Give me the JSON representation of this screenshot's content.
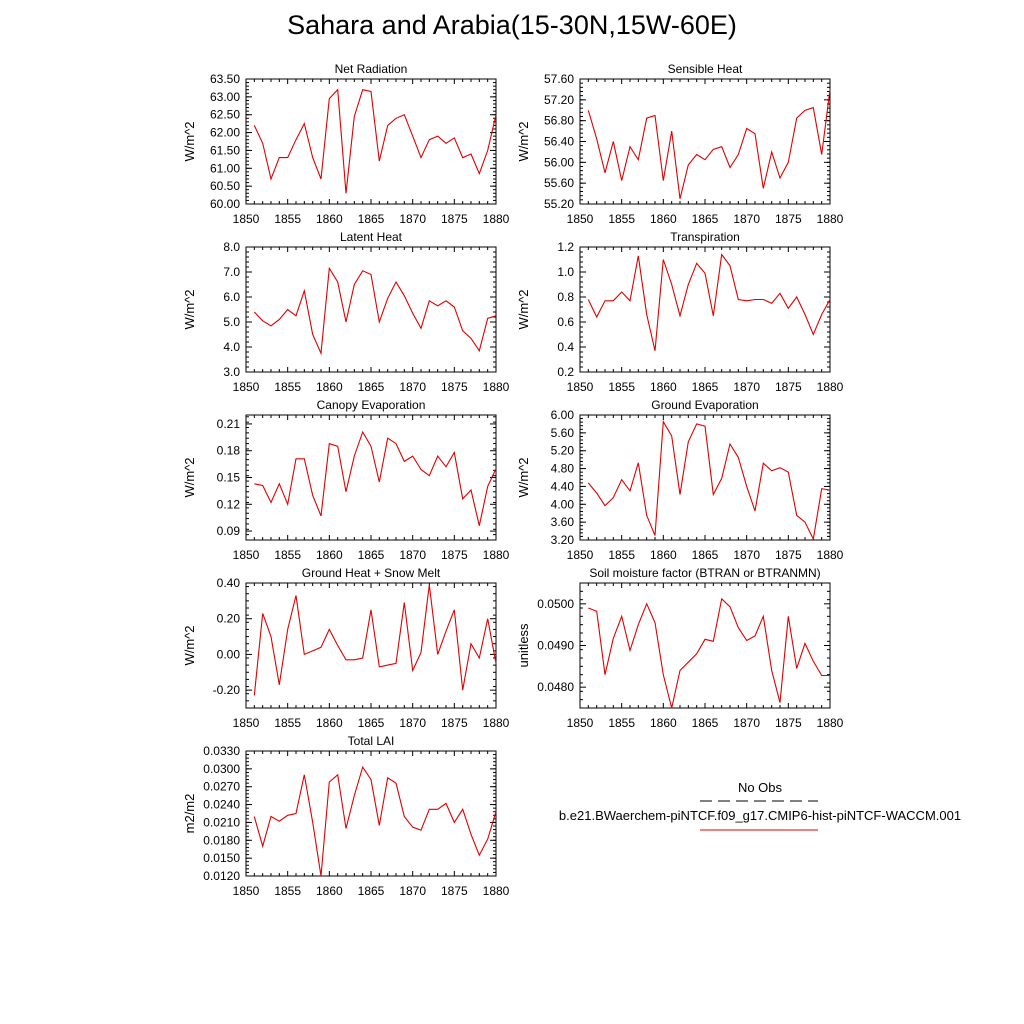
{
  "title": "Sahara and Arabia(15-30N,15W-60E)",
  "legend": {
    "obs_label": "No Obs",
    "case_label": "b.e21.BWaerchem-piNTCF.f09_g17.CMIP6-hist-piNTCF-WACCM.001",
    "case_color": "#e00000",
    "obs_color": "#000000"
  },
  "chart_data": [
    {
      "type": "line",
      "title": "Net Radiation",
      "ylabel": "W/m^2",
      "xlim": [
        1850,
        1880
      ],
      "ylim": [
        60.0,
        63.5
      ],
      "yticks": [
        "63.50",
        "63.00",
        "62.50",
        "62.00",
        "61.50",
        "61.00",
        "60.50",
        "60.00"
      ],
      "xticks": [
        "1850",
        "1855",
        "1860",
        "1865",
        "1870",
        "1875",
        "1880"
      ],
      "x": [
        1851,
        1852,
        1853,
        1854,
        1855,
        1856,
        1857,
        1858,
        1859,
        1860,
        1861,
        1862,
        1863,
        1864,
        1865,
        1866,
        1867,
        1868,
        1869,
        1870,
        1871,
        1872,
        1873,
        1874,
        1875,
        1876,
        1877,
        1878,
        1879,
        1880
      ],
      "series": [
        {
          "values": [
            62.2,
            61.7,
            60.7,
            61.3,
            61.3,
            61.8,
            62.25,
            61.3,
            60.7,
            62.95,
            63.2,
            60.3,
            62.45,
            63.2,
            63.15,
            61.2,
            62.2,
            62.4,
            62.5,
            61.9,
            61.3,
            61.8,
            61.9,
            61.7,
            61.85,
            61.3,
            61.4,
            60.85,
            61.5,
            62.5
          ]
        }
      ]
    },
    {
      "type": "line",
      "title": "Sensible Heat",
      "ylabel": "W/m^2",
      "xlim": [
        1850,
        1880
      ],
      "ylim": [
        55.2,
        57.6
      ],
      "yticks": [
        "57.60",
        "57.20",
        "56.80",
        "56.40",
        "56.00",
        "55.60",
        "55.20"
      ],
      "xticks": [
        "1850",
        "1855",
        "1860",
        "1865",
        "1870",
        "1875",
        "1880"
      ],
      "x": [
        1851,
        1852,
        1853,
        1854,
        1855,
        1856,
        1857,
        1858,
        1859,
        1860,
        1861,
        1862,
        1863,
        1864,
        1865,
        1866,
        1867,
        1868,
        1869,
        1870,
        1871,
        1872,
        1873,
        1874,
        1875,
        1876,
        1877,
        1878,
        1879,
        1880
      ],
      "series": [
        {
          "values": [
            57.0,
            56.45,
            55.8,
            56.4,
            55.65,
            56.3,
            56.05,
            56.85,
            56.9,
            55.65,
            56.6,
            55.3,
            55.95,
            56.15,
            56.05,
            56.25,
            56.3,
            55.9,
            56.15,
            56.65,
            56.55,
            55.5,
            56.2,
            55.7,
            56.0,
            56.85,
            57.0,
            57.05,
            56.15,
            57.4
          ]
        }
      ]
    },
    {
      "type": "line",
      "title": "Latent Heat",
      "ylabel": "W/m^2",
      "xlim": [
        1850,
        1880
      ],
      "ylim": [
        3.0,
        8.0
      ],
      "yticks": [
        "8.0",
        "7.0",
        "6.0",
        "5.0",
        "4.0",
        "3.0"
      ],
      "xticks": [
        "1850",
        "1855",
        "1860",
        "1865",
        "1870",
        "1875",
        "1880"
      ],
      "x": [
        1851,
        1852,
        1853,
        1854,
        1855,
        1856,
        1857,
        1858,
        1859,
        1860,
        1861,
        1862,
        1863,
        1864,
        1865,
        1866,
        1867,
        1868,
        1869,
        1870,
        1871,
        1872,
        1873,
        1874,
        1875,
        1876,
        1877,
        1878,
        1879,
        1880
      ],
      "series": [
        {
          "values": [
            5.4,
            5.05,
            4.85,
            5.1,
            5.5,
            5.25,
            6.25,
            4.5,
            3.75,
            7.15,
            6.6,
            5.0,
            6.5,
            7.05,
            6.9,
            5.0,
            5.95,
            6.6,
            6.05,
            5.35,
            4.75,
            5.85,
            5.65,
            5.85,
            5.6,
            4.65,
            4.35,
            3.85,
            5.15,
            5.25
          ]
        }
      ]
    },
    {
      "type": "line",
      "title": "Transpiration",
      "ylabel": "W/m^2",
      "xlim": [
        1850,
        1880
      ],
      "ylim": [
        0.2,
        1.2
      ],
      "yticks": [
        "1.2",
        "1.0",
        "0.8",
        "0.6",
        "0.4",
        "0.2"
      ],
      "xticks": [
        "1850",
        "1855",
        "1860",
        "1865",
        "1870",
        "1875",
        "1880"
      ],
      "x": [
        1851,
        1852,
        1853,
        1854,
        1855,
        1856,
        1857,
        1858,
        1859,
        1860,
        1861,
        1862,
        1863,
        1864,
        1865,
        1866,
        1867,
        1868,
        1869,
        1870,
        1871,
        1872,
        1873,
        1874,
        1875,
        1876,
        1877,
        1878,
        1879,
        1880
      ],
      "series": [
        {
          "values": [
            0.78,
            0.64,
            0.77,
            0.77,
            0.84,
            0.77,
            1.13,
            0.66,
            0.37,
            1.1,
            0.9,
            0.65,
            0.9,
            1.07,
            0.99,
            0.65,
            1.14,
            1.05,
            0.78,
            0.77,
            0.78,
            0.78,
            0.75,
            0.83,
            0.71,
            0.8,
            0.66,
            0.5,
            0.66,
            0.78
          ]
        }
      ]
    },
    {
      "type": "line",
      "title": "Canopy Evaporation",
      "ylabel": "W/m^2",
      "xlim": [
        1850,
        1880
      ],
      "ylim": [
        0.08,
        0.22
      ],
      "yticks": [
        "0.21",
        "0.18",
        "0.15",
        "0.12",
        "0.09"
      ],
      "xticks": [
        "1850",
        "1855",
        "1860",
        "1865",
        "1870",
        "1875",
        "1880"
      ],
      "x": [
        1851,
        1852,
        1853,
        1854,
        1855,
        1856,
        1857,
        1858,
        1859,
        1860,
        1861,
        1862,
        1863,
        1864,
        1865,
        1866,
        1867,
        1868,
        1869,
        1870,
        1871,
        1872,
        1873,
        1874,
        1875,
        1876,
        1877,
        1878,
        1879,
        1880
      ],
      "series": [
        {
          "values": [
            0.143,
            0.141,
            0.122,
            0.143,
            0.12,
            0.171,
            0.171,
            0.13,
            0.107,
            0.188,
            0.185,
            0.134,
            0.174,
            0.201,
            0.185,
            0.145,
            0.194,
            0.188,
            0.168,
            0.174,
            0.159,
            0.152,
            0.174,
            0.162,
            0.178,
            0.126,
            0.136,
            0.096,
            0.14,
            0.16
          ]
        }
      ]
    },
    {
      "type": "line",
      "title": "Ground Evaporation",
      "ylabel": "W/m^2",
      "xlim": [
        1850,
        1880
      ],
      "ylim": [
        3.2,
        6.0
      ],
      "yticks": [
        "6.00",
        "5.60",
        "5.20",
        "4.80",
        "4.40",
        "4.00",
        "3.60",
        "3.20"
      ],
      "xticks": [
        "1850",
        "1855",
        "1860",
        "1865",
        "1870",
        "1875",
        "1880"
      ],
      "x": [
        1851,
        1852,
        1853,
        1854,
        1855,
        1856,
        1857,
        1858,
        1859,
        1860,
        1861,
        1862,
        1863,
        1864,
        1865,
        1866,
        1867,
        1868,
        1869,
        1870,
        1871,
        1872,
        1873,
        1874,
        1875,
        1876,
        1877,
        1878,
        1879,
        1880
      ],
      "series": [
        {
          "values": [
            4.48,
            4.25,
            3.97,
            4.15,
            4.55,
            4.3,
            4.93,
            3.75,
            3.3,
            5.85,
            5.53,
            4.22,
            5.4,
            5.8,
            5.75,
            4.22,
            4.58,
            5.35,
            5.05,
            4.4,
            3.85,
            4.92,
            4.75,
            4.82,
            4.72,
            3.75,
            3.6,
            3.22,
            4.35,
            4.32
          ]
        }
      ]
    },
    {
      "type": "line",
      "title": "Ground Heat + Snow Melt",
      "ylabel": "W/m^2",
      "xlim": [
        1850,
        1880
      ],
      "ylim": [
        -0.3,
        0.4
      ],
      "yticks": [
        "0.40",
        "0.20",
        "0.00",
        "-0.20"
      ],
      "xticks": [
        "1850",
        "1855",
        "1860",
        "1865",
        "1870",
        "1875",
        "1880"
      ],
      "x": [
        1851,
        1852,
        1853,
        1854,
        1855,
        1856,
        1857,
        1858,
        1859,
        1860,
        1861,
        1862,
        1863,
        1864,
        1865,
        1866,
        1867,
        1868,
        1869,
        1870,
        1871,
        1872,
        1873,
        1874,
        1875,
        1876,
        1877,
        1878,
        1879,
        1880
      ],
      "series": [
        {
          "values": [
            -0.23,
            0.23,
            0.1,
            -0.17,
            0.14,
            0.33,
            0.0,
            0.02,
            0.04,
            0.14,
            0.05,
            -0.03,
            -0.03,
            -0.02,
            0.25,
            -0.07,
            -0.06,
            -0.05,
            0.29,
            -0.09,
            0.01,
            0.39,
            0.0,
            0.13,
            0.25,
            -0.2,
            0.06,
            -0.02,
            0.2,
            -0.05
          ]
        }
      ]
    },
    {
      "type": "line",
      "title": "Soil moisture factor (BTRAN or BTRANMN)",
      "ylabel": "unitless",
      "xlim": [
        1850,
        1880
      ],
      "ylim": [
        0.0475,
        0.0505
      ],
      "yticks": [
        "0.0500",
        "0.0490",
        "0.0480"
      ],
      "xticks": [
        "1850",
        "1855",
        "1860",
        "1865",
        "1870",
        "1875",
        "1880"
      ],
      "x": [
        1851,
        1852,
        1853,
        1854,
        1855,
        1856,
        1857,
        1858,
        1859,
        1860,
        1861,
        1862,
        1863,
        1864,
        1865,
        1866,
        1867,
        1868,
        1869,
        1870,
        1871,
        1872,
        1873,
        1874,
        1875,
        1876,
        1877,
        1878,
        1879,
        1880
      ],
      "series": [
        {
          "values": [
            0.0499,
            0.04982,
            0.0483,
            0.04917,
            0.0497,
            0.04888,
            0.0495,
            0.05,
            0.04955,
            0.0483,
            0.0475,
            0.0484,
            0.0486,
            0.0488,
            0.04915,
            0.0491,
            0.05012,
            0.04993,
            0.04943,
            0.04912,
            0.04923,
            0.0497,
            0.0484,
            0.04763,
            0.0497,
            0.04845,
            0.04905,
            0.04862,
            0.04828,
            0.04828
          ]
        }
      ]
    },
    {
      "type": "line",
      "title": "Total LAI",
      "ylabel": "m2/m2",
      "xlim": [
        1850,
        1880
      ],
      "ylim": [
        0.012,
        0.033
      ],
      "yticks": [
        "0.0330",
        "0.0300",
        "0.0270",
        "0.0240",
        "0.0210",
        "0.0180",
        "0.0150",
        "0.0120"
      ],
      "xticks": [
        "1850",
        "1855",
        "1860",
        "1865",
        "1870",
        "1875",
        "1880"
      ],
      "x": [
        1851,
        1852,
        1853,
        1854,
        1855,
        1856,
        1857,
        1858,
        1859,
        1860,
        1861,
        1862,
        1863,
        1864,
        1865,
        1866,
        1867,
        1868,
        1869,
        1870,
        1871,
        1872,
        1873,
        1874,
        1875,
        1876,
        1877,
        1878,
        1879,
        1880
      ],
      "series": [
        {
          "values": [
            0.022,
            0.017,
            0.022,
            0.0212,
            0.0222,
            0.0225,
            0.029,
            0.021,
            0.012,
            0.0278,
            0.029,
            0.02,
            0.0255,
            0.0303,
            0.0282,
            0.0205,
            0.0285,
            0.0276,
            0.022,
            0.0202,
            0.0197,
            0.0232,
            0.0232,
            0.0242,
            0.021,
            0.0232,
            0.019,
            0.0155,
            0.0182,
            0.0228
          ]
        }
      ]
    }
  ]
}
